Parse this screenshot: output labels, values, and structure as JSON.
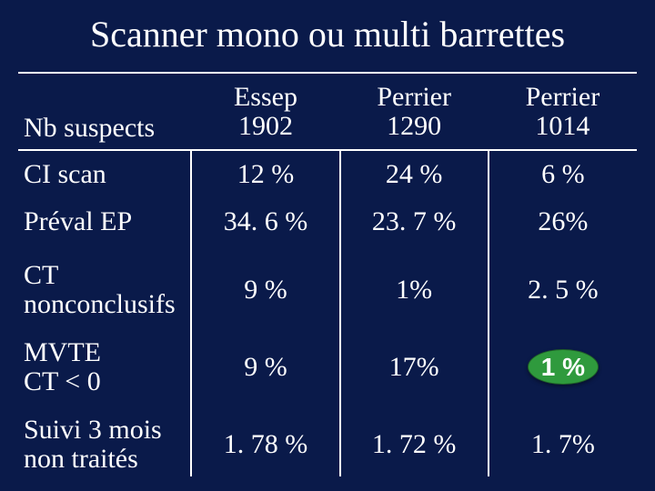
{
  "title": "Scanner mono ou multi barrettes",
  "background_color": "#0a1a4a",
  "text_color": "#ffffff",
  "highlight_color": "#2f9a3d",
  "table": {
    "row_header": "Nb suspects",
    "studies": [
      {
        "name": "Essep",
        "n": "1902"
      },
      {
        "name": "Perrier",
        "n": "1290"
      },
      {
        "name": "Perrier",
        "n": "1014"
      }
    ],
    "rows": [
      {
        "label": "CI scan",
        "values": [
          "12 %",
          "24 %",
          "6 %"
        ]
      },
      {
        "label": "Préval EP",
        "values": [
          "34. 6 %",
          "23. 7 %",
          "26%"
        ]
      },
      {
        "label": "CT non\nconclusifs",
        "values": [
          "9 %",
          "1%",
          "2. 5 %"
        ]
      },
      {
        "label": "MVTE\nCT < 0",
        "values": [
          "9 %",
          "17%",
          {
            "text": "1 %",
            "highlight": true
          }
        ]
      },
      {
        "label": "Suivi 3 mois\nnon traités",
        "values": [
          "1. 78 %",
          "1. 72 %",
          "1. 7%"
        ]
      }
    ]
  }
}
